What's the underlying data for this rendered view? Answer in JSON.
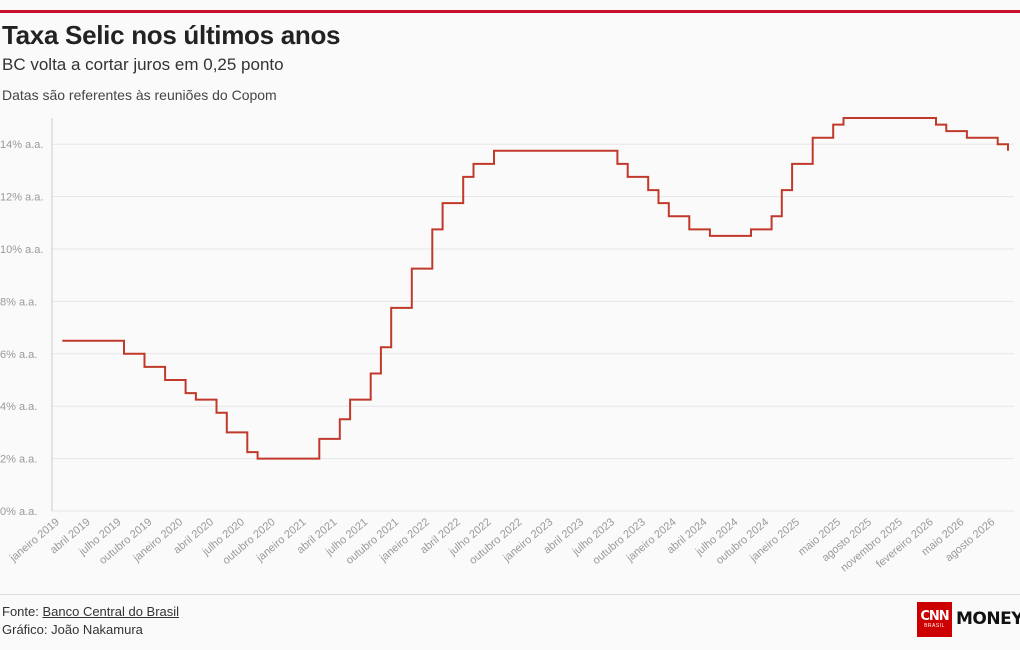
{
  "header": {
    "title": "Taxa Selic nos últimos anos",
    "subtitle": "BC volta a cortar juros em 0,25 ponto",
    "note": "Datas são referentes às reuniões do Copom"
  },
  "footer": {
    "source_prefix": "Fonte: ",
    "source_link": "Banco Central do Brasil",
    "credit": "Gráfico: João Nakamura"
  },
  "logo": {
    "cnn": "CNN",
    "cnn_sub": "BRASIL",
    "money": "MONEY"
  },
  "colors": {
    "line": "#c0392b",
    "grid": "#e6e6e6",
    "tick_label": "#999999",
    "accent": "#c8102e"
  },
  "chart_data": {
    "type": "line",
    "step": true,
    "title": "Taxa Selic nos últimos anos",
    "subtitle": "BC volta a cortar juros em 0,25 ponto",
    "xlabel": "",
    "ylabel": "",
    "ylim": [
      0,
      15
    ],
    "xlim": [
      "2019-01",
      "2026-10"
    ],
    "grid": true,
    "legend": "none",
    "y_ticks": [
      {
        "value": 0,
        "label": "0% a.a."
      },
      {
        "value": 2,
        "label": "2% a.a."
      },
      {
        "value": 4,
        "label": "4% a.a."
      },
      {
        "value": 6,
        "label": "6% a.a."
      },
      {
        "value": 8,
        "label": "8% a.a."
      },
      {
        "value": 10,
        "label": "10% a.a."
      },
      {
        "value": 12,
        "label": "12% a.a."
      },
      {
        "value": 14,
        "label": "14% a.a."
      }
    ],
    "x_ticks": [
      {
        "date": "2019-01",
        "label": "janeiro 2019"
      },
      {
        "date": "2019-04",
        "label": "abril 2019"
      },
      {
        "date": "2019-07",
        "label": "julho 2019"
      },
      {
        "date": "2019-10",
        "label": "outubro 2019"
      },
      {
        "date": "2020-01",
        "label": "janeiro 2020"
      },
      {
        "date": "2020-04",
        "label": "abril 2020"
      },
      {
        "date": "2020-07",
        "label": "julho 2020"
      },
      {
        "date": "2020-10",
        "label": "outubro 2020"
      },
      {
        "date": "2021-01",
        "label": "janeiro 2021"
      },
      {
        "date": "2021-04",
        "label": "abril 2021"
      },
      {
        "date": "2021-07",
        "label": "julho 2021"
      },
      {
        "date": "2021-10",
        "label": "outubro 2021"
      },
      {
        "date": "2022-01",
        "label": "janeiro 2022"
      },
      {
        "date": "2022-04",
        "label": "abril 2022"
      },
      {
        "date": "2022-07",
        "label": "julho 2022"
      },
      {
        "date": "2022-10",
        "label": "outubro 2022"
      },
      {
        "date": "2023-01",
        "label": "janeiro 2023"
      },
      {
        "date": "2023-04",
        "label": "abril 2023"
      },
      {
        "date": "2023-07",
        "label": "julho 2023"
      },
      {
        "date": "2023-10",
        "label": "outubro 2023"
      },
      {
        "date": "2024-01",
        "label": "janeiro 2024"
      },
      {
        "date": "2024-04",
        "label": "abril 2024"
      },
      {
        "date": "2024-07",
        "label": "julho 2024"
      },
      {
        "date": "2024-10",
        "label": "outubro 2024"
      },
      {
        "date": "2025-01",
        "label": "janeiro 2025"
      },
      {
        "date": "2025-05",
        "label": "maio 2025"
      },
      {
        "date": "2025-08",
        "label": "agosto 2025"
      },
      {
        "date": "2025-11",
        "label": "novembro 2025"
      },
      {
        "date": "2026-02",
        "label": "fevereiro 2026"
      },
      {
        "date": "2026-05",
        "label": "maio 2026"
      },
      {
        "date": "2026-08",
        "label": "agosto 2026"
      }
    ],
    "series": [
      {
        "x": [
          "2019-02",
          "2019-03",
          "2019-05",
          "2019-06",
          "2019-08",
          "2019-09",
          "2019-10",
          "2019-12",
          "2020-02",
          "2020-03",
          "2020-05",
          "2020-06",
          "2020-08",
          "2020-09",
          "2020-10",
          "2020-12",
          "2021-01",
          "2021-03",
          "2021-05",
          "2021-06",
          "2021-08",
          "2021-09",
          "2021-10",
          "2021-12",
          "2022-02",
          "2022-03",
          "2022-05",
          "2022-06",
          "2022-08",
          "2022-09",
          "2022-10",
          "2022-12",
          "2023-02",
          "2023-03",
          "2023-05",
          "2023-06",
          "2023-08",
          "2023-09",
          "2023-11",
          "2023-12",
          "2024-01",
          "2024-03",
          "2024-05",
          "2024-06",
          "2024-07",
          "2024-09",
          "2024-11",
          "2024-12",
          "2025-01",
          "2025-03",
          "2025-05",
          "2025-06",
          "2025-07",
          "2025-09",
          "2025-11",
          "2025-12",
          "2026-01",
          "2026-03",
          "2026-04",
          "2026-06",
          "2026-07",
          "2026-09",
          "2026-10"
        ],
        "y": [
          6.5,
          6.5,
          6.5,
          6.5,
          6.0,
          6.0,
          5.5,
          5.0,
          4.5,
          4.25,
          3.75,
          3.0,
          2.25,
          2.0,
          2.0,
          2.0,
          2.0,
          2.75,
          3.5,
          4.25,
          5.25,
          6.25,
          7.75,
          9.25,
          10.75,
          11.75,
          12.75,
          13.25,
          13.75,
          13.75,
          13.75,
          13.75,
          13.75,
          13.75,
          13.75,
          13.75,
          13.25,
          12.75,
          12.25,
          11.75,
          11.25,
          10.75,
          10.5,
          10.5,
          10.5,
          10.75,
          11.25,
          12.25,
          13.25,
          14.25,
          14.75,
          15.0,
          15.0,
          15.0,
          15.0,
          15.0,
          15.0,
          14.75,
          14.5,
          14.25,
          14.25,
          14.0,
          13.75
        ]
      }
    ]
  }
}
